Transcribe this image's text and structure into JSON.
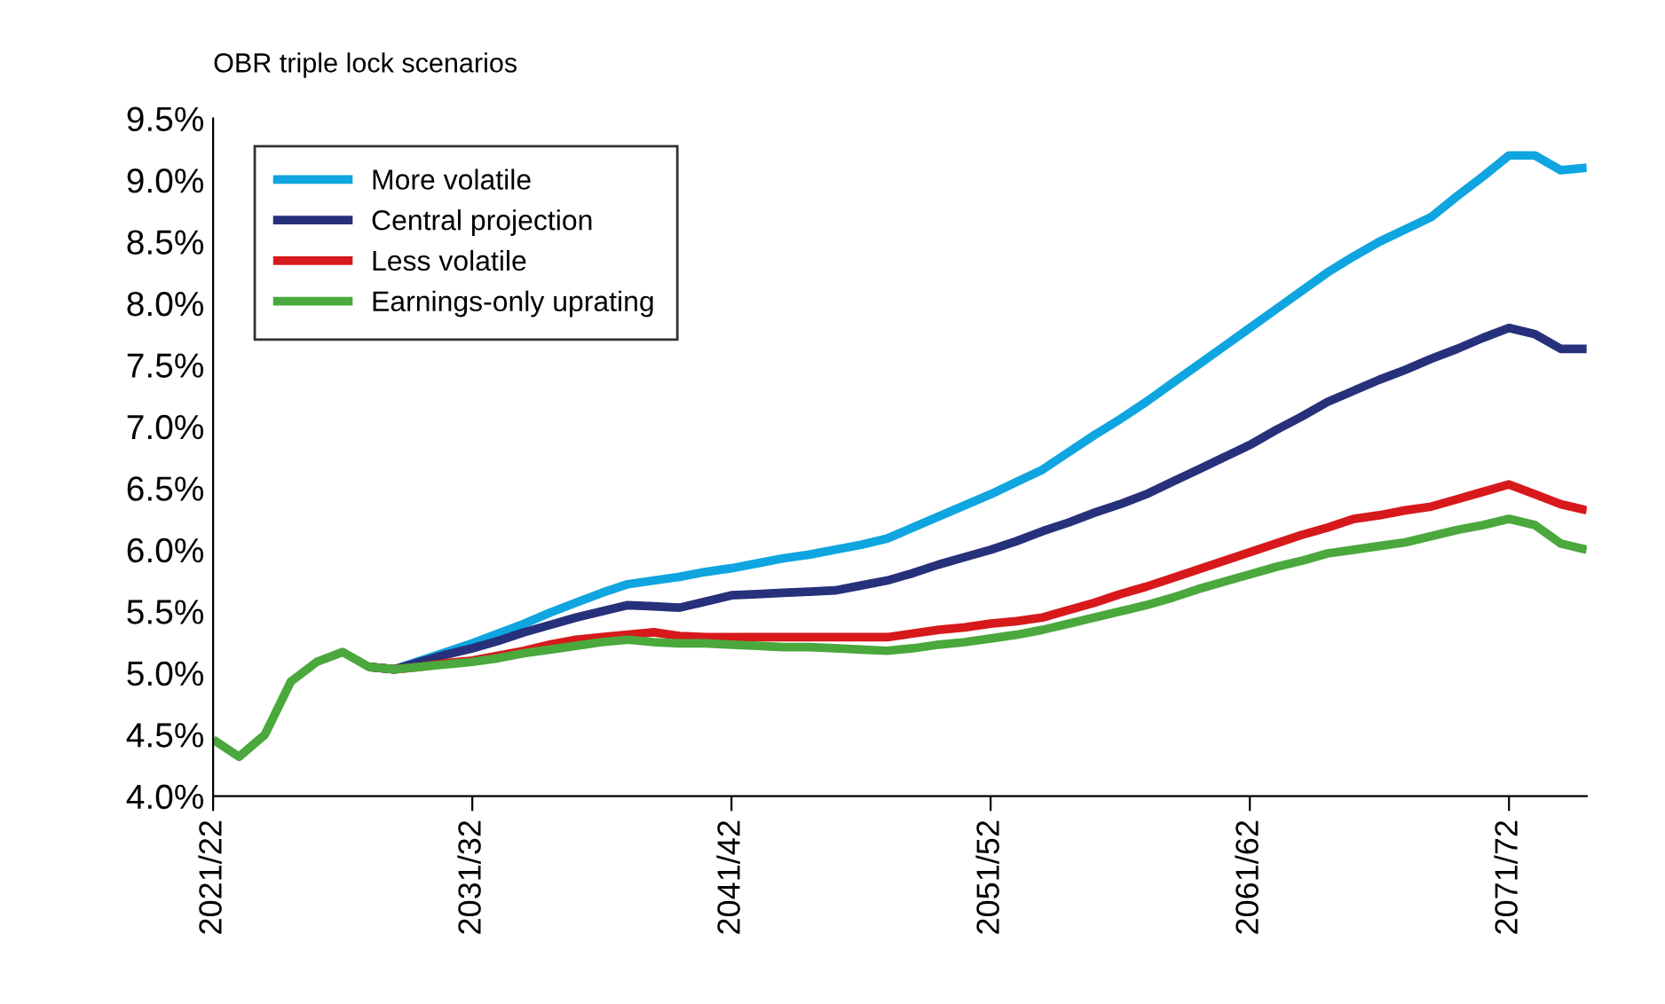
{
  "chart_data": {
    "type": "line",
    "title": "OBR triple lock scenarios",
    "categories": [
      "2021/22",
      null,
      null,
      null,
      null,
      null,
      null,
      null,
      null,
      null,
      "2031/32",
      null,
      null,
      null,
      null,
      null,
      null,
      null,
      null,
      null,
      "2041/42",
      null,
      null,
      null,
      null,
      null,
      null,
      null,
      null,
      null,
      "2051/52",
      null,
      null,
      null,
      null,
      null,
      null,
      null,
      null,
      null,
      "2061/62",
      null,
      null,
      null,
      null,
      null,
      null,
      null,
      null,
      null,
      "2071/72",
      null,
      null,
      null
    ],
    "ylim": [
      4.0,
      9.5
    ],
    "yticks": [
      {
        "value": 4.0,
        "label": "4.0%"
      },
      {
        "value": 4.5,
        "label": "4.5%"
      },
      {
        "value": 5.0,
        "label": "5.0%"
      },
      {
        "value": 5.5,
        "label": "5.5%"
      },
      {
        "value": 6.0,
        "label": "6.0%"
      },
      {
        "value": 6.5,
        "label": "6.5%"
      },
      {
        "value": 7.0,
        "label": "7.0%"
      },
      {
        "value": 7.5,
        "label": "7.5%"
      },
      {
        "value": 8.0,
        "label": "8.0%"
      },
      {
        "value": 8.5,
        "label": "8.5%"
      },
      {
        "value": 9.0,
        "label": "9.0%"
      },
      {
        "value": 9.5,
        "label": "9.5%"
      }
    ],
    "grid": false,
    "legend": "top left",
    "marker": "none",
    "line_style": "solid",
    "series": [
      {
        "name": "More volatile",
        "color": "#0ea5e0",
        "values": [
          null,
          null,
          null,
          null,
          null,
          null,
          5.05,
          5.03,
          5.1,
          5.17,
          5.24,
          5.32,
          5.4,
          5.49,
          5.57,
          5.65,
          5.72,
          5.75,
          5.78,
          5.82,
          5.85,
          5.89,
          5.93,
          5.96,
          6.0,
          6.04,
          6.09,
          6.18,
          6.27,
          6.36,
          6.45,
          6.55,
          6.65,
          6.79,
          6.93,
          7.06,
          7.2,
          7.35,
          7.5,
          7.65,
          7.8,
          7.95,
          8.1,
          8.25,
          8.38,
          8.5,
          8.6,
          8.7,
          8.87,
          9.03,
          9.2,
          9.2,
          9.08,
          9.1
        ]
      },
      {
        "name": "Central projection",
        "color": "#27307a",
        "values": [
          null,
          null,
          null,
          null,
          null,
          null,
          5.05,
          5.03,
          5.09,
          5.15,
          5.2,
          5.26,
          5.33,
          5.39,
          5.45,
          5.5,
          5.55,
          5.54,
          5.53,
          5.58,
          5.63,
          5.64,
          5.65,
          5.66,
          5.67,
          5.71,
          5.75,
          5.81,
          5.88,
          5.94,
          6.0,
          6.07,
          6.15,
          6.22,
          6.3,
          6.37,
          6.45,
          6.55,
          6.65,
          6.75,
          6.85,
          6.97,
          7.08,
          7.2,
          7.29,
          7.38,
          7.46,
          7.55,
          7.63,
          7.72,
          7.8,
          7.75,
          7.63,
          7.63
        ]
      },
      {
        "name": "Less volatile",
        "color": "#d7191c",
        "values": [
          null,
          null,
          null,
          null,
          null,
          null,
          5.05,
          5.03,
          5.05,
          5.08,
          5.1,
          5.14,
          5.18,
          5.23,
          5.27,
          5.29,
          5.31,
          5.33,
          5.3,
          5.29,
          5.29,
          5.29,
          5.29,
          5.29,
          5.29,
          5.29,
          5.29,
          5.32,
          5.35,
          5.37,
          5.4,
          5.42,
          5.45,
          5.51,
          5.57,
          5.64,
          5.7,
          5.77,
          5.84,
          5.91,
          5.98,
          6.05,
          6.12,
          6.18,
          6.25,
          6.28,
          6.32,
          6.35,
          6.41,
          6.47,
          6.53,
          6.45,
          6.37,
          6.32
        ]
      },
      {
        "name": "Earnings-only uprating",
        "color": "#4aa83c",
        "values": [
          4.46,
          4.32,
          4.5,
          4.93,
          5.09,
          5.17,
          5.05,
          5.03,
          5.05,
          5.07,
          5.09,
          5.12,
          5.16,
          5.19,
          5.22,
          5.25,
          5.27,
          5.25,
          5.24,
          5.24,
          5.23,
          5.22,
          5.21,
          5.21,
          5.2,
          5.19,
          5.18,
          5.2,
          5.23,
          5.25,
          5.28,
          5.31,
          5.35,
          5.4,
          5.45,
          5.5,
          5.55,
          5.61,
          5.68,
          5.74,
          5.8,
          5.86,
          5.91,
          5.97,
          6.0,
          6.03,
          6.06,
          6.11,
          6.16,
          6.2,
          6.25,
          6.2,
          6.05,
          6.0
        ]
      }
    ]
  }
}
